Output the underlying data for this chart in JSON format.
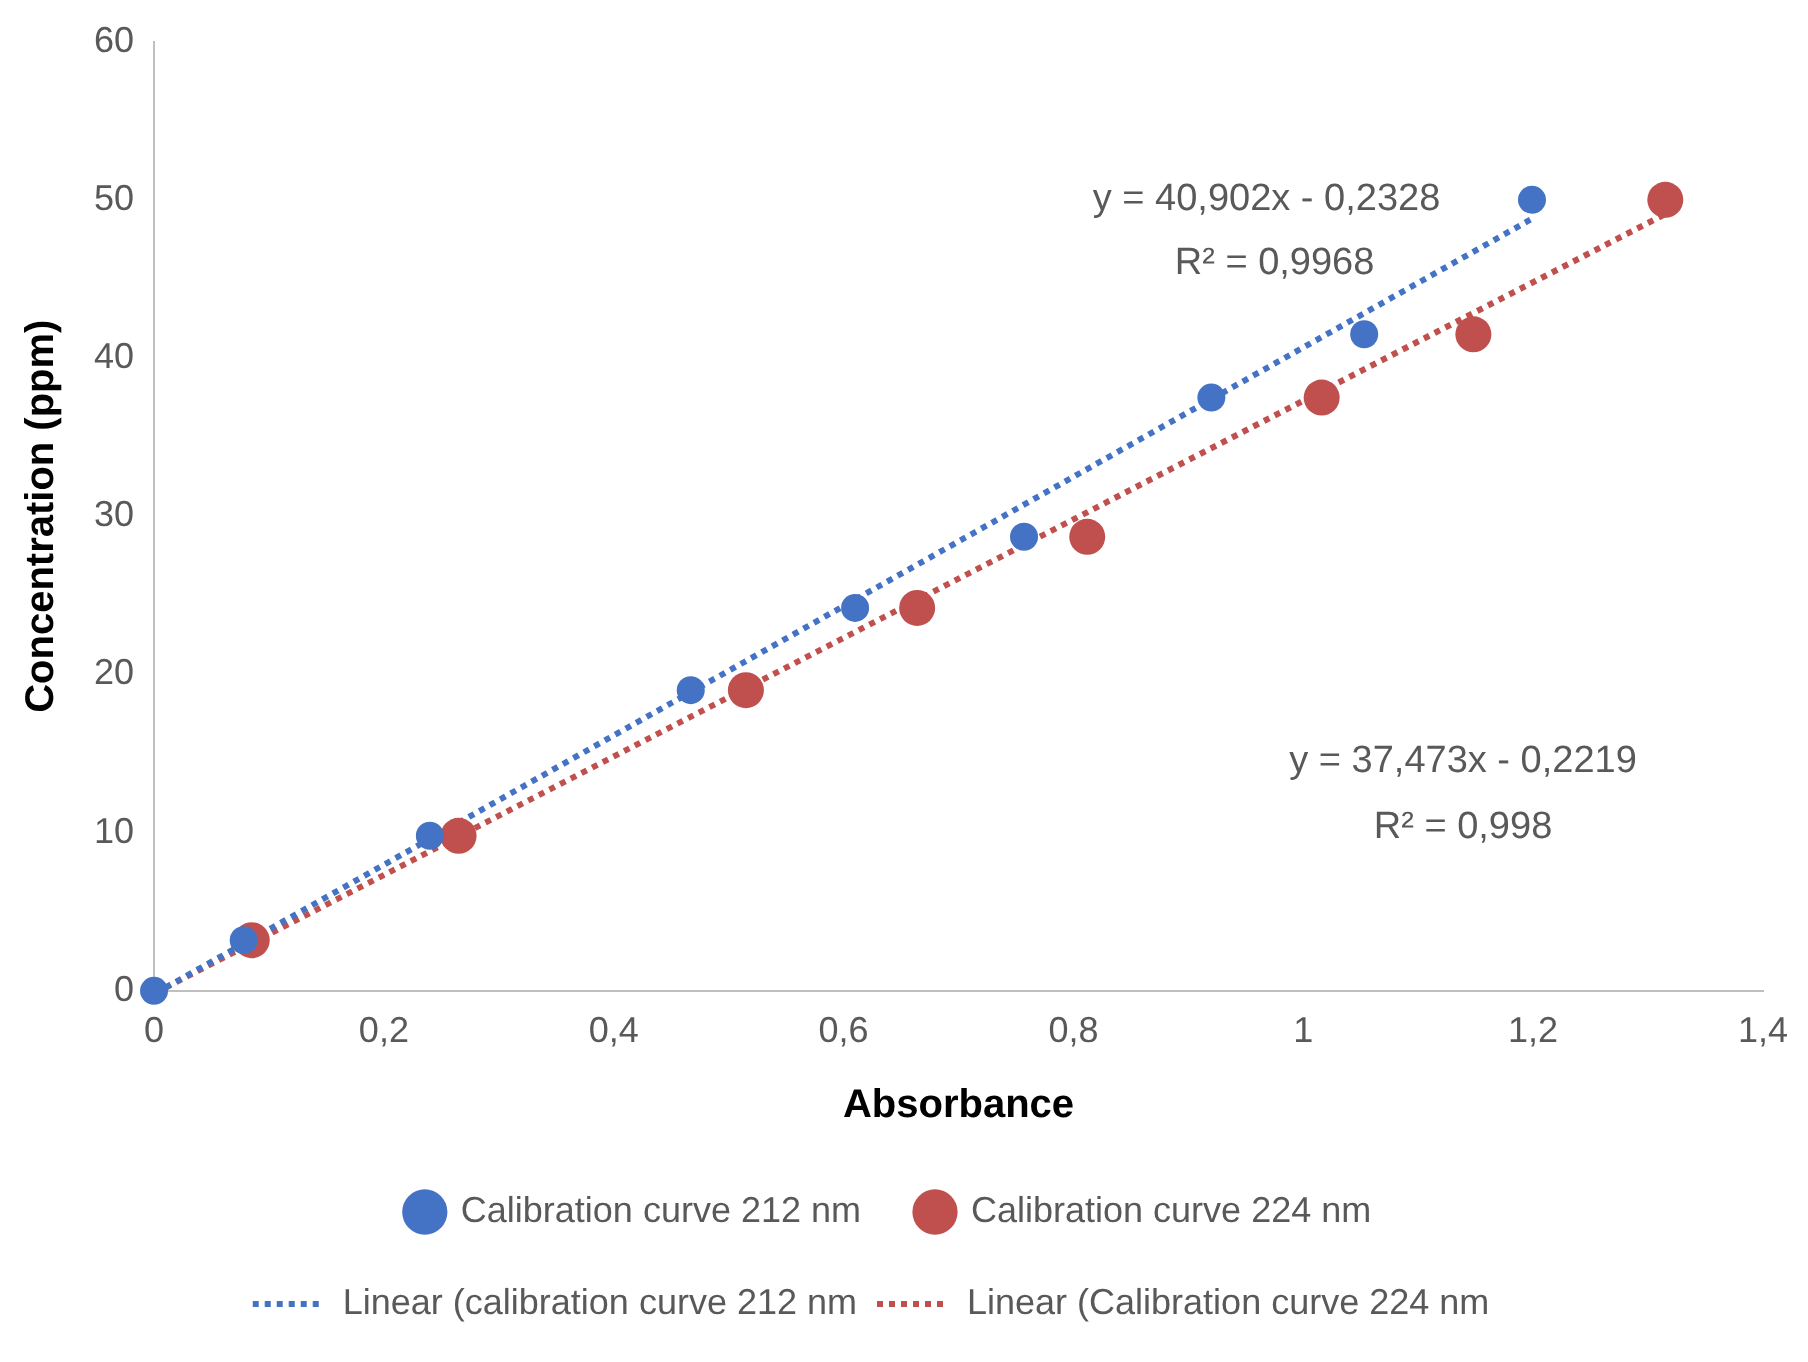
{
  "chart_data": {
    "type": "scatter",
    "xlabel": "Absorbance",
    "ylabel": "Concentration (ppm)",
    "xlim": [
      0,
      1.4
    ],
    "ylim": [
      0,
      60
    ],
    "xticks": [
      0,
      {
        "value": 0.2,
        "label": "0,2"
      },
      {
        "value": 0.4,
        "label": "0,4"
      },
      {
        "value": 0.6,
        "label": "0,6"
      },
      {
        "value": 0.8,
        "label": "0,8"
      },
      1,
      {
        "value": 1.2,
        "label": "1,2"
      },
      {
        "value": 1.4,
        "label": "1,4"
      }
    ],
    "yticks": [
      0,
      10,
      20,
      30,
      40,
      50,
      60
    ],
    "grid": false,
    "legend": "bottom",
    "marker": "circle",
    "series": [
      {
        "name": "Calibration curve 212 nm",
        "color": "#4472c4",
        "x": [
          0,
          0.078,
          0.24,
          0.467,
          0.61,
          0.757,
          0.92,
          1.053,
          1.199
        ],
        "values": [
          0,
          3.2,
          9.8,
          19,
          24.2,
          28.7,
          37.5,
          41.5,
          50
        ]
      },
      {
        "name": "Calibration curve 224 nm",
        "color": "#c0504d",
        "x": [
          0.085,
          0.265,
          0.515,
          0.664,
          0.812,
          1.016,
          1.148,
          1.315
        ],
        "values": [
          3.2,
          9.8,
          19,
          24.2,
          28.7,
          37.5,
          41.5,
          50
        ]
      },
      {
        "name": "Linear (calibration curve 212 nm",
        "type": "line",
        "line_style": "dotted",
        "marker": "none",
        "color": "#4472c4",
        "x": [
          0.01,
          1.199
        ],
        "values": [
          0.2,
          48.8
        ]
      },
      {
        "name": "Linear (Calibration curve 224 nm",
        "type": "line",
        "line_style": "dotted",
        "marker": "none",
        "color": "#c0504d",
        "x": [
          0.01,
          1.315
        ],
        "values": [
          0.2,
          49.1
        ]
      }
    ],
    "annotations": [
      "y = 40,902x - 0,2328",
      "R² = 0,9968",
      "y = 37,473x - 0,2219",
      "R² = 0,998"
    ]
  }
}
